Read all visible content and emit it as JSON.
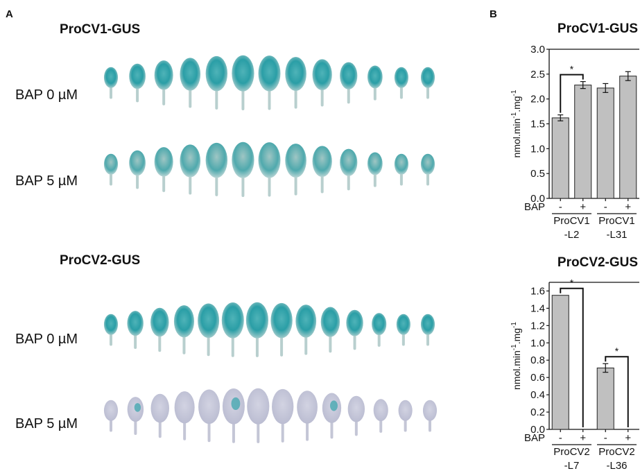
{
  "panel_a": {
    "letter": "A",
    "sections": [
      {
        "title": "ProCV1-GUS",
        "rows": [
          {
            "label": "BAP  0 µM",
            "stain": "strong",
            "count": 13
          },
          {
            "label": "BAP  5 µM",
            "stain": "strong",
            "count": 13
          }
        ]
      },
      {
        "title": "ProCV2-GUS",
        "rows": [
          {
            "label": "BAP  0 µM",
            "stain": "strong",
            "count": 14
          },
          {
            "label": "BAP  5 µM",
            "stain": "weak",
            "count": 14
          }
        ]
      }
    ]
  },
  "panel_b": {
    "letter": "B"
  },
  "chart_data": [
    {
      "type": "bar",
      "title": "ProCV1-GUS",
      "ylabel": "nmol.min-1.mg-1",
      "ylim": [
        0,
        3.0
      ],
      "yticks": [
        "0.0",
        "0.5",
        "1.0",
        "1.5",
        "2.0",
        "2.5",
        "3.0"
      ],
      "treatment_label": "BAP",
      "x": [
        "-",
        "+",
        "-",
        "+"
      ],
      "groups": [
        {
          "line1": "ProCV1",
          "line2": "-L2"
        },
        {
          "line1": "ProCV1",
          "line2": "-L31"
        }
      ],
      "values": [
        1.62,
        2.28,
        2.22,
        2.46
      ],
      "errors": [
        0.06,
        0.07,
        0.09,
        0.09
      ],
      "significance": [
        {
          "from": 0,
          "to": 1,
          "label": "*"
        }
      ],
      "bar_color": "#c0c0c0"
    },
    {
      "type": "bar",
      "title": "ProCV2-GUS",
      "ylabel": "nmol.min-1.mg-1",
      "ylim": [
        0,
        1.7
      ],
      "yticks": [
        "0.0",
        "0.2",
        "0.4",
        "0.6",
        "0.8",
        "1.0",
        "1.2",
        "1.4",
        "1.6"
      ],
      "treatment_label": "BAP",
      "x": [
        "-",
        "+",
        "-",
        "+"
      ],
      "groups": [
        {
          "line1": "ProCV2",
          "line2": "-L7"
        },
        {
          "line1": "ProCV2",
          "line2": "-L36"
        }
      ],
      "values": [
        1.55,
        0,
        0.71,
        0
      ],
      "errors": [
        0,
        0,
        0.05,
        0
      ],
      "significance": [
        {
          "from": 0,
          "to": 1,
          "label": "*"
        },
        {
          "from": 2,
          "to": 3,
          "label": "*"
        }
      ],
      "bar_color": "#c0c0c0"
    }
  ]
}
